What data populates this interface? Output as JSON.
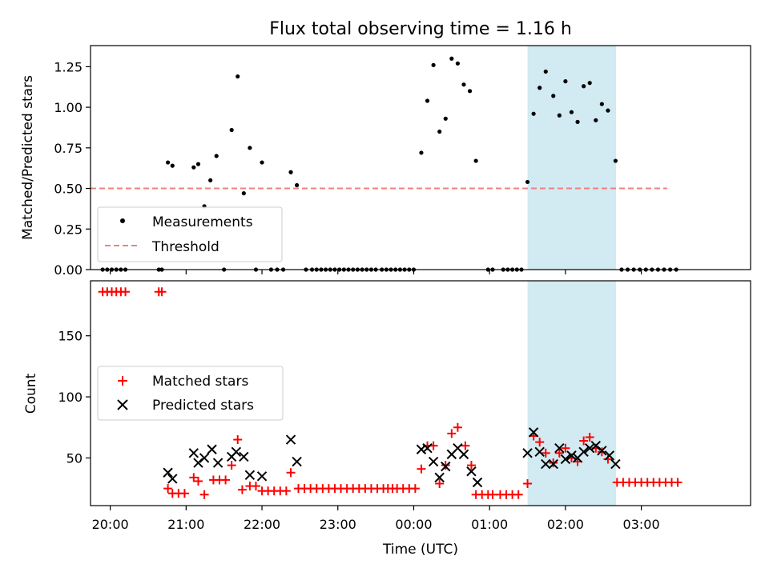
{
  "chart_data": {
    "type": "scatter",
    "title": "Flux total observing time = 1.16 h",
    "xlabel": "Time (UTC)",
    "x_units": "hours relative to 00:00 UTC",
    "xlim": [
      -0.63,
      3.72
    ],
    "x_ticks": [
      {
        "value": -0.5,
        "label": "20:00"
      },
      {
        "value": 0,
        "label": "21:00"
      },
      {
        "value": 0.5,
        "label": "22:00"
      },
      {
        "value": 1,
        "label": "23:00"
      },
      {
        "value": 1.5,
        "label": "00:00"
      },
      {
        "value": 2,
        "label": "01:00"
      },
      {
        "value": 2.5,
        "label": "02:00"
      },
      {
        "value": 3,
        "label": "03:00"
      }
    ],
    "shaded_region": {
      "x_start": 2.25,
      "x_end": 2.833,
      "color": "#add8e6"
    },
    "panels": [
      {
        "name": "ratio",
        "ylabel": "Matched/Predicted stars",
        "ylim": [
          0,
          1.38
        ],
        "y_ticks": [
          {
            "value": 0,
            "label": "0.00"
          },
          {
            "value": 0.25,
            "label": "0.25"
          },
          {
            "value": 0.5,
            "label": "0.50"
          },
          {
            "value": 0.75,
            "label": "0.75"
          },
          {
            "value": 1.0,
            "label": "1.00"
          },
          {
            "value": 1.25,
            "label": "1.25"
          }
        ],
        "legend": {
          "placement": "lower-left",
          "entries": [
            "Measurements",
            "Threshold"
          ]
        },
        "series": [
          {
            "name": "Measurements",
            "marker": "dot",
            "color": "#000000",
            "points": [
              [
                -0.55,
                0
              ],
              [
                -0.52,
                0
              ],
              [
                -0.49,
                0
              ],
              [
                -0.46,
                0
              ],
              [
                -0.43,
                0
              ],
              [
                -0.4,
                0
              ],
              [
                -0.18,
                0
              ],
              [
                -0.16,
                0
              ],
              [
                -0.12,
                0.66
              ],
              [
                -0.09,
                0.64
              ],
              [
                0.05,
                0.63
              ],
              [
                0.08,
                0.65
              ],
              [
                0.12,
                0.39
              ],
              [
                0.16,
                0.55
              ],
              [
                0.2,
                0.7
              ],
              [
                0.25,
                0
              ],
              [
                0.3,
                0.86
              ],
              [
                0.34,
                1.19
              ],
              [
                0.38,
                0.47
              ],
              [
                0.42,
                0.75
              ],
              [
                0.46,
                0
              ],
              [
                0.5,
                0.66
              ],
              [
                0.56,
                0
              ],
              [
                0.6,
                0
              ],
              [
                0.64,
                0
              ],
              [
                0.69,
                0.6
              ],
              [
                0.73,
                0.52
              ],
              [
                0.79,
                0
              ],
              [
                0.83,
                0
              ],
              [
                0.86,
                0
              ],
              [
                0.89,
                0
              ],
              [
                0.92,
                0
              ],
              [
                0.95,
                0
              ],
              [
                0.98,
                0
              ],
              [
                1.01,
                0
              ],
              [
                1.04,
                0
              ],
              [
                1.07,
                0
              ],
              [
                1.1,
                0
              ],
              [
                1.13,
                0
              ],
              [
                1.16,
                0
              ],
              [
                1.19,
                0
              ],
              [
                1.22,
                0
              ],
              [
                1.25,
                0
              ],
              [
                1.29,
                0
              ],
              [
                1.32,
                0
              ],
              [
                1.35,
                0
              ],
              [
                1.38,
                0
              ],
              [
                1.41,
                0
              ],
              [
                1.44,
                0
              ],
              [
                1.47,
                0
              ],
              [
                1.5,
                0
              ],
              [
                1.55,
                0.72
              ],
              [
                1.59,
                1.04
              ],
              [
                1.63,
                1.26
              ],
              [
                1.67,
                0.85
              ],
              [
                1.71,
                0.93
              ],
              [
                1.75,
                1.3
              ],
              [
                1.79,
                1.27
              ],
              [
                1.83,
                1.14
              ],
              [
                1.87,
                1.1
              ],
              [
                1.91,
                0.67
              ],
              [
                1.99,
                0
              ],
              [
                2.02,
                0
              ],
              [
                2.09,
                0
              ],
              [
                2.12,
                0
              ],
              [
                2.15,
                0
              ],
              [
                2.18,
                0
              ],
              [
                2.21,
                0
              ],
              [
                2.25,
                0.54
              ],
              [
                2.29,
                0.96
              ],
              [
                2.33,
                1.12
              ],
              [
                2.37,
                1.22
              ],
              [
                2.42,
                1.07
              ],
              [
                2.46,
                0.95
              ],
              [
                2.5,
                1.16
              ],
              [
                2.54,
                0.97
              ],
              [
                2.58,
                0.91
              ],
              [
                2.62,
                1.13
              ],
              [
                2.66,
                1.15
              ],
              [
                2.7,
                0.92
              ],
              [
                2.74,
                1.02
              ],
              [
                2.78,
                0.98
              ],
              [
                2.83,
                0.67
              ],
              [
                2.87,
                0
              ],
              [
                2.91,
                0
              ],
              [
                2.95,
                0
              ],
              [
                2.99,
                0
              ],
              [
                3.03,
                0
              ],
              [
                3.07,
                0
              ],
              [
                3.11,
                0
              ],
              [
                3.15,
                0
              ],
              [
                3.19,
                0
              ],
              [
                3.23,
                0
              ]
            ]
          },
          {
            "name": "Threshold",
            "style": "dashed",
            "color": "#f08080",
            "points": [
              [
                -0.63,
                0.5
              ],
              [
                3.17,
                0.5
              ]
            ]
          }
        ]
      },
      {
        "name": "counts",
        "ylabel": "Count",
        "ylim": [
          11,
          195
        ],
        "y_ticks": [
          {
            "value": 50,
            "label": "50"
          },
          {
            "value": 100,
            "label": "100"
          },
          {
            "value": 150,
            "label": "150"
          }
        ],
        "legend": {
          "placement": "center-left",
          "entries": [
            "Matched stars",
            "Predicted stars"
          ]
        },
        "series": [
          {
            "name": "Matched stars",
            "marker": "plus",
            "color": "#ff0000",
            "points": [
              [
                -0.55,
                186
              ],
              [
                -0.52,
                186
              ],
              [
                -0.49,
                186
              ],
              [
                -0.46,
                186
              ],
              [
                -0.43,
                186
              ],
              [
                -0.4,
                186
              ],
              [
                -0.18,
                186
              ],
              [
                -0.16,
                186
              ],
              [
                -0.12,
                25
              ],
              [
                -0.09,
                21
              ],
              [
                -0.05,
                21
              ],
              [
                -0.01,
                21
              ],
              [
                0.05,
                34
              ],
              [
                0.08,
                31
              ],
              [
                0.12,
                20
              ],
              [
                0.18,
                32
              ],
              [
                0.22,
                32
              ],
              [
                0.26,
                32
              ],
              [
                0.3,
                44
              ],
              [
                0.34,
                65
              ],
              [
                0.37,
                24
              ],
              [
                0.42,
                27
              ],
              [
                0.46,
                27
              ],
              [
                0.5,
                23
              ],
              [
                0.54,
                23
              ],
              [
                0.58,
                23
              ],
              [
                0.62,
                23
              ],
              [
                0.66,
                23
              ],
              [
                0.69,
                38
              ],
              [
                0.74,
                25
              ],
              [
                0.78,
                25
              ],
              [
                0.82,
                25
              ],
              [
                0.86,
                25
              ],
              [
                0.9,
                25
              ],
              [
                0.94,
                25
              ],
              [
                0.98,
                25
              ],
              [
                1.02,
                25
              ],
              [
                1.06,
                25
              ],
              [
                1.1,
                25
              ],
              [
                1.14,
                25
              ],
              [
                1.18,
                25
              ],
              [
                1.22,
                25
              ],
              [
                1.26,
                25
              ],
              [
                1.3,
                25
              ],
              [
                1.33,
                25
              ],
              [
                1.36,
                25
              ],
              [
                1.39,
                25
              ],
              [
                1.43,
                25
              ],
              [
                1.47,
                25
              ],
              [
                1.51,
                25
              ],
              [
                1.55,
                41
              ],
              [
                1.59,
                60
              ],
              [
                1.63,
                60
              ],
              [
                1.67,
                29
              ],
              [
                1.71,
                44
              ],
              [
                1.75,
                70
              ],
              [
                1.79,
                75
              ],
              [
                1.84,
                60
              ],
              [
                1.88,
                44
              ],
              [
                1.91,
                20
              ],
              [
                1.95,
                20
              ],
              [
                1.99,
                20
              ],
              [
                2.02,
                20
              ],
              [
                2.07,
                20
              ],
              [
                2.11,
                20
              ],
              [
                2.15,
                20
              ],
              [
                2.19,
                20
              ],
              [
                2.25,
                29
              ],
              [
                2.29,
                68
              ],
              [
                2.33,
                63
              ],
              [
                2.37,
                54
              ],
              [
                2.42,
                46
              ],
              [
                2.46,
                54
              ],
              [
                2.5,
                58
              ],
              [
                2.54,
                50
              ],
              [
                2.58,
                47
              ],
              [
                2.62,
                64
              ],
              [
                2.66,
                67
              ],
              [
                2.7,
                58
              ],
              [
                2.74,
                55
              ],
              [
                2.78,
                49
              ],
              [
                2.84,
                30
              ],
              [
                2.88,
                30
              ],
              [
                2.92,
                30
              ],
              [
                2.96,
                30
              ],
              [
                3.0,
                30
              ],
              [
                3.04,
                30
              ],
              [
                3.08,
                30
              ],
              [
                3.12,
                30
              ],
              [
                3.16,
                30
              ],
              [
                3.2,
                30
              ],
              [
                3.24,
                30
              ]
            ]
          },
          {
            "name": "Predicted stars",
            "marker": "x",
            "color": "#000000",
            "points": [
              [
                -0.12,
                38
              ],
              [
                -0.09,
                33
              ],
              [
                0.05,
                54
              ],
              [
                0.08,
                46
              ],
              [
                0.12,
                50
              ],
              [
                0.17,
                57
              ],
              [
                0.21,
                46
              ],
              [
                0.3,
                51
              ],
              [
                0.33,
                55
              ],
              [
                0.38,
                51
              ],
              [
                0.42,
                36
              ],
              [
                0.5,
                35
              ],
              [
                0.69,
                65
              ],
              [
                0.73,
                47
              ],
              [
                1.55,
                57
              ],
              [
                1.59,
                58
              ],
              [
                1.63,
                47
              ],
              [
                1.67,
                34
              ],
              [
                1.71,
                43
              ],
              [
                1.75,
                53
              ],
              [
                1.79,
                58
              ],
              [
                1.83,
                53
              ],
              [
                1.88,
                39
              ],
              [
                1.92,
                30
              ],
              [
                2.25,
                54
              ],
              [
                2.29,
                71
              ],
              [
                2.33,
                55
              ],
              [
                2.37,
                45
              ],
              [
                2.42,
                45
              ],
              [
                2.46,
                58
              ],
              [
                2.5,
                49
              ],
              [
                2.54,
                52
              ],
              [
                2.58,
                50
              ],
              [
                2.62,
                55
              ],
              [
                2.66,
                58
              ],
              [
                2.7,
                60
              ],
              [
                2.74,
                56
              ],
              [
                2.79,
                52
              ],
              [
                2.83,
                45
              ]
            ]
          }
        ]
      }
    ]
  }
}
